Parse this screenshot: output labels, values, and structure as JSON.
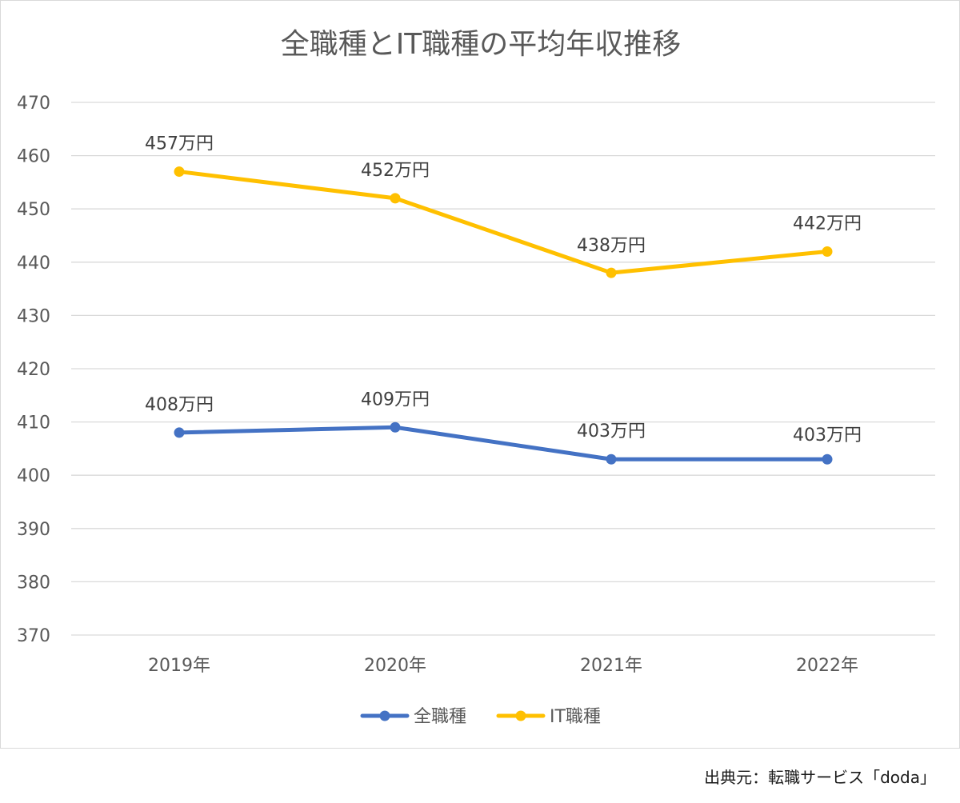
{
  "chart_data": {
    "type": "line",
    "title": "全職種とIT職種の平均年収推移",
    "xlabel": "",
    "ylabel": "",
    "categories": [
      "2019年",
      "2020年",
      "2021年",
      "2022年"
    ],
    "ylim": [
      370,
      470
    ],
    "yticks": [
      470,
      460,
      450,
      440,
      430,
      420,
      410,
      400,
      390,
      380,
      370
    ],
    "grid": true,
    "legend_position": "bottom",
    "series": [
      {
        "name": "全職種",
        "color": "#4472c4",
        "values": [
          408,
          409,
          403,
          403
        ],
        "labels": [
          "408万円",
          "409万円",
          "403万円",
          "403万円"
        ]
      },
      {
        "name": "IT職種",
        "color": "#ffc000",
        "values": [
          457,
          452,
          438,
          442
        ],
        "labels": [
          "457万円",
          "452万円",
          "438万円",
          "442万円"
        ]
      }
    ]
  },
  "source_note": "出典元：転職サービス「doda」"
}
